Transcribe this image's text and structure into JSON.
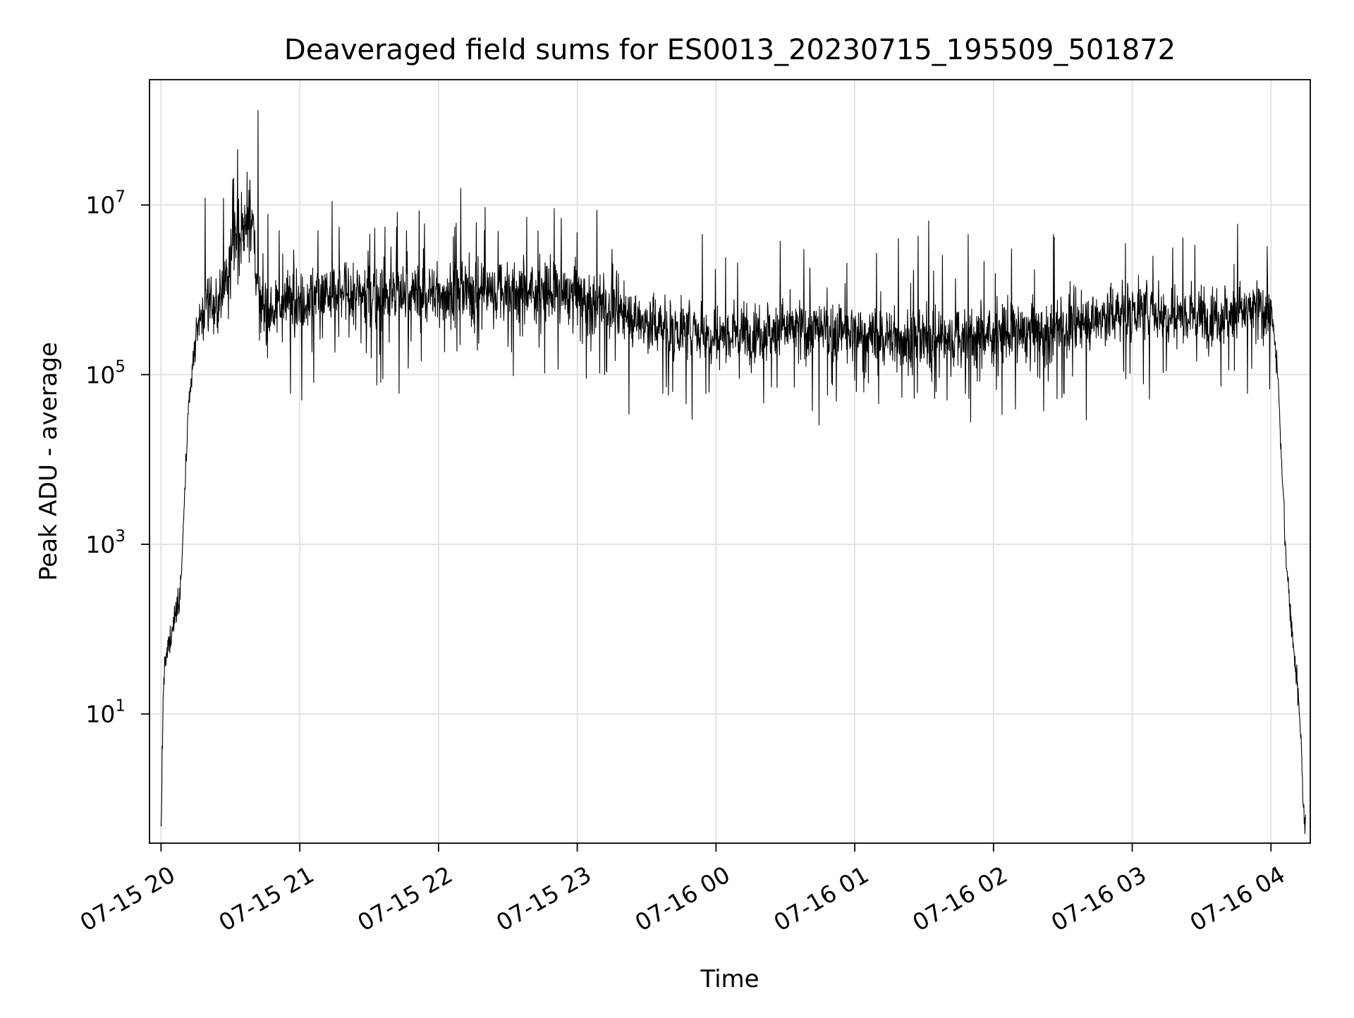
{
  "chart_data": {
    "type": "line",
    "title": "Deaveraged field sums for ES0013_20230715_195509_501872",
    "xlabel": "Time",
    "ylabel": "Peak ADU - average",
    "yscale": "log",
    "ylim": [
      0.3,
      300000000.0
    ],
    "xlim": [
      "07-15 19:55",
      "07-16 04:17"
    ],
    "grid": true,
    "line_color": "#000000",
    "x_ticks": [
      "07-15 20",
      "07-15 21",
      "07-15 22",
      "07-15 23",
      "07-16 00",
      "07-16 01",
      "07-16 02",
      "07-16 03",
      "07-16 04"
    ],
    "y_ticks": [
      {
        "base": "10",
        "exp": "1",
        "value": 10
      },
      {
        "base": "10",
        "exp": "3",
        "value": 1000
      },
      {
        "base": "10",
        "exp": "5",
        "value": 100000
      },
      {
        "base": "10",
        "exp": "7",
        "value": 10000000
      }
    ],
    "series": [
      {
        "x": [
          "07-15 20:00",
          "07-15 20:01",
          "07-15 20:02",
          "07-15 20:03",
          "07-15 20:05",
          "07-15 20:07",
          "07-15 20:08",
          "07-15 20:09",
          "07-15 20:10",
          "07-15 20:12",
          "07-15 20:14",
          "07-15 20:16",
          "07-15 20:18",
          "07-15 20:20",
          "07-15 20:23",
          "07-15 20:26",
          "07-15 20:30",
          "07-15 20:35",
          "07-15 20:40",
          "07-15 20:42",
          "07-15 20:45",
          "07-15 20:50",
          "07-15 21:00",
          "07-15 21:30",
          "07-15 22:00",
          "07-15 22:30",
          "07-15 23:00",
          "07-15 23:30",
          "07-16 00:00",
          "07-16 00:30",
          "07-16 01:00",
          "07-16 01:30",
          "07-16 02:00",
          "07-16 02:30",
          "07-16 03:00",
          "07-16 03:30",
          "07-16 04:00",
          "07-16 04:03",
          "07-16 04:05",
          "07-16 04:07",
          "07-16 04:09",
          "07-16 04:11",
          "07-16 04:13",
          "07-16 04:14",
          "07-16 04:15"
        ],
        "y": [
          0.4,
          20,
          40,
          60,
          100,
          200,
          250,
          500,
          3000,
          40000,
          150000,
          400000,
          600000,
          700000,
          700000,
          750000,
          3000000,
          5000000,
          6000000,
          600000,
          600000,
          700000,
          800000,
          900000,
          900000,
          1000000,
          900000,
          400000,
          300000,
          350000,
          300000,
          250000,
          300000,
          350000,
          600000,
          500000,
          600000,
          100000,
          5000,
          500,
          100,
          30,
          5,
          0.8,
          0.4
        ]
      }
    ],
    "spikes": [
      {
        "x": "07-15 20:19",
        "y": 12000000
      },
      {
        "x": "07-15 20:27",
        "y": 12000000
      },
      {
        "x": "07-15 20:31",
        "y": 20000000
      },
      {
        "x": "07-15 20:33",
        "y": 45000000
      },
      {
        "x": "07-15 20:38",
        "y": 15000000
      },
      {
        "x": "07-15 20:42",
        "y": 130000000
      },
      {
        "x": "07-15 20:51",
        "y": 5000000
      },
      {
        "x": "07-15 21:01",
        "y": 4500000
      },
      {
        "x": "07-15 21:08",
        "y": 5000000
      },
      {
        "x": "07-15 21:17",
        "y": 5500000
      },
      {
        "x": "07-15 21:37",
        "y": 5500000
      },
      {
        "x": "07-15 21:54",
        "y": 6000000
      },
      {
        "x": "07-15 22:07",
        "y": 5500000
      },
      {
        "x": "07-15 22:20",
        "y": 5000000
      },
      {
        "x": "07-15 22:53",
        "y": 7000000
      },
      {
        "x": "07-15 23:15",
        "y": 3000000
      },
      {
        "x": "07-15 23:54",
        "y": 4500000
      },
      {
        "x": "07-16 00:38",
        "y": 3000000
      },
      {
        "x": "07-16 01:19",
        "y": 4000000
      },
      {
        "x": "07-16 01:32",
        "y": 6500000
      },
      {
        "x": "07-16 01:49",
        "y": 4500000
      },
      {
        "x": "07-16 02:26",
        "y": 4500000
      },
      {
        "x": "07-16 02:57",
        "y": 3500000
      },
      {
        "x": "07-16 03:09",
        "y": 2500000
      },
      {
        "x": "07-16 03:44",
        "y": 2000000
      }
    ],
    "dips": [
      {
        "x": "07-15 20:56",
        "y": 60000
      },
      {
        "x": "07-15 21:01",
        "y": 50000
      },
      {
        "x": "07-15 21:43",
        "y": 60000
      },
      {
        "x": "07-15 23:37",
        "y": 60000
      },
      {
        "x": "07-16 01:40",
        "y": 50000
      },
      {
        "x": "07-16 03:50",
        "y": 60000
      }
    ]
  }
}
